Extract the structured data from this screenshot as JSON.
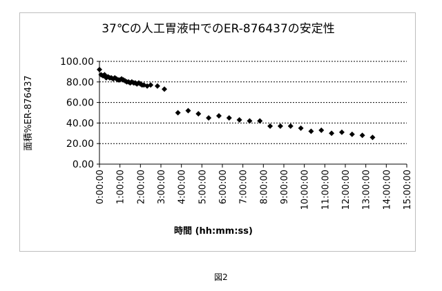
{
  "chart_data": {
    "type": "scatter",
    "title": "37℃の人工胃液中でのER-876437の安定性",
    "xlabel": "時間 (hh:mm:ss)",
    "ylabel": "面積%ER-876437",
    "xlim": [
      0,
      15
    ],
    "ylim": [
      0,
      100
    ],
    "yticks": [
      "0.00",
      "20.00",
      "40.00",
      "60.00",
      "80.00",
      "100.00"
    ],
    "xticks": [
      "0:00:00",
      "1:00:00",
      "2:00:00",
      "3:00:00",
      "4:00:00",
      "5:00:00",
      "6:00:00",
      "7:00:00",
      "8:00:00",
      "9:00:00",
      "10:00:00",
      "11:00:00",
      "12:00:00",
      "13:00:00",
      "14:00:00",
      "15:00:00"
    ],
    "marker": "diamond",
    "color": "#000000",
    "x": [
      0.0,
      0.08,
      0.17,
      0.25,
      0.33,
      0.42,
      0.5,
      0.58,
      0.67,
      0.75,
      0.83,
      0.92,
      1.0,
      1.08,
      1.17,
      1.25,
      1.33,
      1.42,
      1.5,
      1.58,
      1.67,
      1.75,
      1.83,
      1.92,
      2.0,
      2.08,
      2.17,
      2.33,
      2.5,
      2.83,
      3.17,
      3.83,
      4.33,
      4.83,
      5.33,
      5.83,
      6.33,
      6.83,
      7.33,
      7.83,
      8.33,
      8.83,
      9.33,
      9.83,
      10.33,
      10.83,
      11.33,
      11.83,
      12.33,
      12.83,
      13.33
    ],
    "y": [
      92,
      87,
      86,
      87,
      84,
      85,
      84,
      84,
      83,
      84,
      83,
      82,
      82,
      83,
      82,
      81,
      80,
      80,
      79,
      80,
      79,
      79,
      78,
      79,
      78,
      77,
      77,
      76,
      77,
      76,
      73,
      50,
      52,
      49,
      45,
      47,
      45,
      43,
      42,
      42,
      37,
      37,
      37,
      35,
      32,
      33,
      30,
      31,
      29,
      28,
      26
    ]
  },
  "caption": "図2"
}
